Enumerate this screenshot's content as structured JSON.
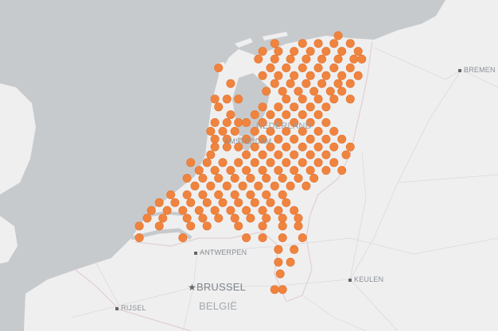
{
  "map": {
    "colors": {
      "sea": "#c7cacd",
      "land": "#efefef",
      "marker": "#f0843f",
      "marker_stroke": "#e07330",
      "border": "#e2cfd3",
      "road": "#dcdcdc"
    },
    "labels": {
      "bremen": "BREMEN",
      "nederland": "NEDERLAND",
      "amsterdam": "AMSTERDAM",
      "antwerpen": "ANTWERPEN",
      "brussel": "BRUSSEL",
      "belgie": "BELGIË",
      "keulen": "KEULEN",
      "rijsel": "RIJSEL"
    },
    "capital_icon": "star-icon",
    "marker_rows": [
      {
        "lat": 53.43,
        "lons": [
          6.76
        ]
      },
      {
        "lat": 53.35,
        "lons": [
          5.71,
          6.17,
          6.43,
          6.69,
          6.96
        ]
      },
      {
        "lat": 53.27,
        "lons": [
          5.51,
          5.77,
          6.03,
          6.3,
          6.56,
          6.82,
          7.09
        ]
      },
      {
        "lat": 53.19,
        "lons": [
          5.44,
          5.71,
          5.97,
          6.23,
          6.49,
          6.76,
          7.02,
          7.15
        ]
      },
      {
        "lat": 53.1,
        "lons": [
          4.78,
          5.64,
          5.9,
          6.17,
          6.43,
          6.69,
          6.96
        ]
      },
      {
        "lat": 53.02,
        "lons": [
          5.51,
          5.77,
          6.03,
          6.3,
          6.56,
          6.82,
          7.09
        ]
      },
      {
        "lat": 52.94,
        "lons": [
          4.98,
          5.71,
          5.97,
          6.23,
          6.49,
          6.76,
          6.96
        ]
      },
      {
        "lat": 52.86,
        "lons": [
          5.57,
          5.84,
          6.1,
          6.36,
          6.63,
          6.82
        ]
      },
      {
        "lat": 52.78,
        "lons": [
          4.72,
          4.92,
          5.11,
          5.9,
          6.17,
          6.43,
          6.69,
          6.96
        ]
      },
      {
        "lat": 52.7,
        "lons": [
          4.78,
          5.51,
          5.77,
          6.03,
          6.3,
          6.56
        ]
      },
      {
        "lat": 52.62,
        "lons": [
          4.98,
          5.38,
          5.64,
          5.9,
          6.17,
          6.43
        ]
      },
      {
        "lat": 52.54,
        "lons": [
          4.72,
          4.92,
          5.11,
          5.24,
          5.51,
          5.77,
          6.03,
          6.3,
          6.56
        ]
      },
      {
        "lat": 52.45,
        "lons": [
          4.65,
          4.85,
          5.05,
          5.38,
          5.64,
          5.9,
          6.17,
          6.43,
          6.69
        ]
      },
      {
        "lat": 52.37,
        "lons": [
          4.72,
          4.92,
          5.24,
          5.51,
          5.77,
          6.03,
          6.3,
          6.56,
          6.82
        ]
      },
      {
        "lat": 52.29,
        "lons": [
          4.72,
          4.92,
          5.11,
          5.38,
          5.64,
          5.9,
          6.17,
          6.43,
          6.69,
          6.96
        ]
      },
      {
        "lat": 52.21,
        "lons": [
          4.65,
          5.24,
          5.51,
          5.77,
          6.03,
          6.3,
          6.56,
          6.89
        ]
      },
      {
        "lat": 52.13,
        "lons": [
          4.32,
          4.59,
          4.85,
          5.11,
          5.38,
          5.64,
          5.9,
          6.17,
          6.43,
          6.69
        ]
      },
      {
        "lat": 52.05,
        "lons": [
          4.46,
          4.72,
          4.98,
          5.24,
          5.51,
          5.77,
          6.03,
          6.3,
          6.56,
          6.82
        ]
      },
      {
        "lat": 51.97,
        "lons": [
          4.26,
          4.52,
          4.78,
          5.05,
          5.31,
          5.57,
          5.84,
          6.1,
          6.36
        ]
      },
      {
        "lat": 51.89,
        "lons": [
          4.39,
          4.65,
          4.92,
          5.18,
          5.44,
          5.71,
          5.97,
          6.23
        ]
      },
      {
        "lat": 51.8,
        "lons": [
          3.99,
          4.26,
          4.52,
          4.78,
          5.05,
          5.31,
          5.57,
          5.84
        ]
      },
      {
        "lat": 51.72,
        "lons": [
          3.8,
          4.06,
          4.32,
          4.59,
          4.85,
          5.11,
          5.38,
          5.64,
          5.9
        ]
      },
      {
        "lat": 51.64,
        "lons": [
          3.67,
          3.93,
          4.19,
          4.46,
          4.72,
          4.98,
          5.24,
          5.51,
          5.77,
          6.03
        ]
      },
      {
        "lat": 51.56,
        "lons": [
          3.6,
          3.86,
          4.26,
          4.52,
          4.78,
          5.05,
          5.31,
          5.57,
          5.84,
          6.1
        ]
      },
      {
        "lat": 51.48,
        "lons": [
          3.47,
          3.8,
          4.32,
          4.59,
          5.11,
          5.51,
          5.84,
          6.1
        ]
      },
      {
        "lat": 51.36,
        "lons": [
          3.47,
          4.19,
          5.24,
          5.51,
          5.84,
          6.17
        ]
      },
      {
        "lat": 51.24,
        "lons": [
          5.77,
          6.03
        ]
      },
      {
        "lat": 51.11,
        "lons": [
          5.77,
          5.97
        ]
      },
      {
        "lat": 50.99,
        "lons": [
          5.8
        ]
      },
      {
        "lat": 50.83,
        "lons": [
          5.71,
          5.84
        ]
      }
    ]
  }
}
